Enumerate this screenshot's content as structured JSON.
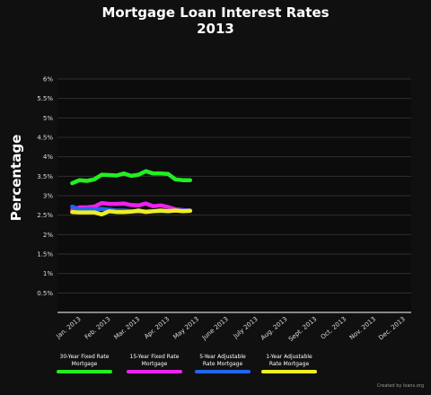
{
  "title_line1": "Mortgage Loan Interest Rates",
  "title_line2": "2013",
  "credit": "Created by loans.org",
  "chart_data": {
    "type": "line",
    "title": "Mortgage Loan Interest Rates 2013",
    "ylabel": "Percentage",
    "xlabel": "",
    "ylim": [
      0,
      6
    ],
    "yticks": [
      "0.5%",
      "1%",
      "1.5%",
      "2%",
      "2.5%",
      "3%",
      "3.5%",
      "4%",
      "4.5%",
      "5%",
      "5.5%",
      "6%"
    ],
    "ytick_values": [
      0.5,
      1,
      1.5,
      2,
      2.5,
      3,
      3.5,
      4,
      4.5,
      5,
      5.5,
      6
    ],
    "categories": [
      "Jan. 2013",
      "Feb. 2013",
      "Mar. 2013",
      "Apr. 2013",
      "May 2013",
      "June 2013",
      "July 2013",
      "Aug. 2013",
      "Sept. 2013",
      "Oct. 2013",
      "Nov. 2013",
      "Dec. 2013"
    ],
    "grid": true,
    "legend_position": "bottom",
    "series": [
      {
        "name": "30-Year Fixed Rate Mortgage",
        "color": "#22ee22",
        "x": [
          0,
          0.25,
          0.5,
          0.75,
          1,
          1.25,
          1.5,
          1.75,
          2,
          2.25,
          2.5,
          2.75,
          3,
          3.25,
          3.5,
          3.75,
          4,
          4.25,
          4.5
        ],
        "values": [
          3.32,
          3.4,
          3.38,
          3.42,
          3.54,
          3.53,
          3.52,
          3.57,
          3.51,
          3.54,
          3.63,
          3.57,
          3.57,
          3.56,
          3.42,
          3.4,
          3.4,
          null,
          null
        ]
      },
      {
        "name": "15-Year Fixed Rate Mortgage",
        "color": "#ee22ee",
        "x": [
          0,
          0.25,
          0.5,
          0.75,
          1,
          1.25,
          1.5,
          1.75,
          2,
          2.25,
          2.5,
          2.75,
          3,
          3.25,
          3.5,
          3.75,
          4
        ],
        "values": [
          2.64,
          2.7,
          2.7,
          2.72,
          2.81,
          2.79,
          2.79,
          2.8,
          2.76,
          2.75,
          2.8,
          2.73,
          2.75,
          2.71,
          2.65,
          2.63,
          2.62
        ]
      },
      {
        "name": "5-Year Adjustable Rate Mortgage",
        "color": "#2266ee",
        "x": [
          0,
          0.25,
          0.5,
          0.75,
          1,
          1.25,
          1.5,
          1.75,
          2,
          2.25,
          2.5,
          2.75,
          3,
          3.25,
          3.5,
          3.75,
          4
        ],
        "values": [
          2.72,
          2.64,
          2.66,
          2.65,
          2.66,
          2.64,
          2.62,
          2.62,
          2.6,
          2.59,
          2.6,
          2.6,
          2.6,
          2.6,
          2.62,
          2.62,
          2.62
        ]
      },
      {
        "name": "1-Year Adjustable Rate Mortgage",
        "color": "#eeee22",
        "x": [
          0,
          0.25,
          0.5,
          0.75,
          1,
          1.25,
          1.5,
          1.75,
          2,
          2.25,
          2.5,
          2.75,
          3,
          3.25,
          3.5,
          3.75,
          4
        ],
        "values": [
          2.58,
          2.57,
          2.57,
          2.57,
          2.52,
          2.6,
          2.58,
          2.58,
          2.59,
          2.62,
          2.58,
          2.6,
          2.62,
          2.6,
          2.62,
          2.6,
          2.61
        ]
      }
    ],
    "legend": [
      {
        "line1": "30-Year Fixed Rate",
        "line2": "Mortgage",
        "color": "#22ee22"
      },
      {
        "line1": "15-Year Fixed Rate",
        "line2": "Mortgage",
        "color": "#ee22ee"
      },
      {
        "line1": "5-Year Adjustable",
        "line2": "Rate Mortgage",
        "color": "#2266ee"
      },
      {
        "line1": "1-Year Adjustable",
        "line2": "Rate Mortgage",
        "color": "#eeee22"
      }
    ]
  }
}
